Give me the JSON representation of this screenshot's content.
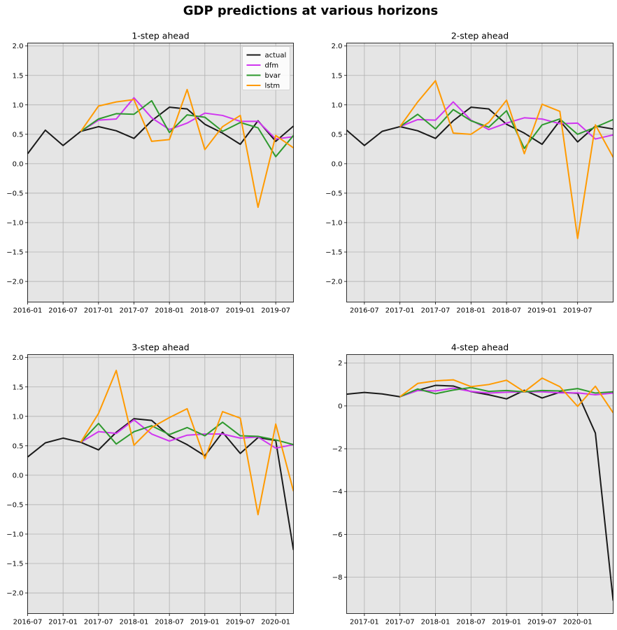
{
  "suptitle": "GDP predictions at various horizons",
  "colors": {
    "actual": "#1a1a1a",
    "dfm": "#d036f0",
    "bvar": "#2e992e",
    "lstm": "#ff9a00",
    "background": "#e5e5e5",
    "grid": "#b0b0b0"
  },
  "chart_data": [
    {
      "type": "line",
      "title": "1-step ahead",
      "xlabel": "",
      "ylabel": "",
      "xlim": [
        "2016-01",
        "2019-10"
      ],
      "ylim": [
        -2.35,
        2.05
      ],
      "yticks": [
        2.0,
        1.5,
        1.0,
        0.5,
        0.0,
        -0.5,
        -1.0,
        -1.5,
        -2.0
      ],
      "ytick_labels": [
        "2.0",
        "1.5",
        "1.0",
        "0.5",
        "0.0",
        "−0.5",
        "−1.0",
        "−1.5",
        "−2.0"
      ],
      "xticks": [
        "2016-01",
        "2016-07",
        "2017-01",
        "2017-07",
        "2018-01",
        "2018-07",
        "2019-01",
        "2019-07"
      ],
      "grid": true,
      "legend": "top-right",
      "series": [
        {
          "name": "actual",
          "x": [
            "2016-01",
            "2016-04",
            "2016-07",
            "2016-10",
            "2017-01",
            "2017-04",
            "2017-07",
            "2017-10",
            "2018-01",
            "2018-04",
            "2018-07",
            "2018-10",
            "2019-01",
            "2019-04",
            "2019-07",
            "2019-10"
          ],
          "values": [
            0.17,
            0.57,
            0.31,
            0.55,
            0.63,
            0.56,
            0.43,
            0.73,
            0.96,
            0.93,
            0.67,
            0.52,
            0.33,
            0.73,
            0.38,
            0.64
          ]
        },
        {
          "name": "dfm",
          "x": [
            "2016-10",
            "2017-01",
            "2017-04",
            "2017-07",
            "2017-10",
            "2018-01",
            "2018-04",
            "2018-07",
            "2018-10",
            "2019-01",
            "2019-04",
            "2019-07",
            "2019-10"
          ],
          "values": [
            0.55,
            0.74,
            0.76,
            1.12,
            0.78,
            0.58,
            0.69,
            0.86,
            0.82,
            0.72,
            0.72,
            0.42,
            0.46
          ]
        },
        {
          "name": "bvar",
          "x": [
            "2016-10",
            "2017-01",
            "2017-04",
            "2017-07",
            "2017-10",
            "2018-01",
            "2018-04",
            "2018-07",
            "2018-10",
            "2019-01",
            "2019-04",
            "2019-07",
            "2019-10"
          ],
          "values": [
            0.55,
            0.76,
            0.85,
            0.84,
            1.07,
            0.53,
            0.83,
            0.79,
            0.55,
            0.7,
            0.61,
            0.12,
            0.48
          ]
        },
        {
          "name": "lstm",
          "x": [
            "2016-10",
            "2017-01",
            "2017-04",
            "2017-07",
            "2017-10",
            "2018-01",
            "2018-04",
            "2018-07",
            "2018-10",
            "2019-01",
            "2019-04",
            "2019-07",
            "2019-10"
          ],
          "values": [
            0.55,
            0.98,
            1.05,
            1.09,
            0.38,
            0.41,
            1.26,
            0.24,
            0.63,
            0.82,
            -0.74,
            0.48,
            0.27
          ]
        }
      ]
    },
    {
      "type": "line",
      "title": "2-step ahead",
      "xlabel": "",
      "ylabel": "",
      "xlim": [
        "2016-04",
        "2020-01"
      ],
      "ylim": [
        -2.35,
        2.05
      ],
      "yticks": [
        2.0,
        1.5,
        1.0,
        0.5,
        0.0,
        -0.5,
        -1.0,
        -1.5,
        -2.0
      ],
      "ytick_labels": [
        "2.0",
        "1.5",
        "1.0",
        "0.5",
        "0.0",
        "−0.5",
        "−1.0",
        "−1.5",
        "−2.0"
      ],
      "xticks": [
        "2016-07",
        "2017-01",
        "2017-07",
        "2018-01",
        "2018-07",
        "2019-01",
        "2019-07"
      ],
      "grid": true,
      "series": [
        {
          "name": "actual",
          "x": [
            "2016-04",
            "2016-07",
            "2016-10",
            "2017-01",
            "2017-04",
            "2017-07",
            "2017-10",
            "2018-01",
            "2018-04",
            "2018-07",
            "2018-10",
            "2019-01",
            "2019-04",
            "2019-07",
            "2019-10",
            "2020-01"
          ],
          "values": [
            0.57,
            0.31,
            0.55,
            0.63,
            0.56,
            0.43,
            0.73,
            0.96,
            0.93,
            0.67,
            0.52,
            0.33,
            0.73,
            0.37,
            0.64,
            0.59
          ]
        },
        {
          "name": "dfm",
          "x": [
            "2017-01",
            "2017-04",
            "2017-07",
            "2017-10",
            "2018-01",
            "2018-04",
            "2018-07",
            "2018-10",
            "2019-01",
            "2019-04",
            "2019-07",
            "2019-10",
            "2020-01"
          ],
          "values": [
            0.63,
            0.75,
            0.74,
            1.05,
            0.74,
            0.58,
            0.69,
            0.78,
            0.76,
            0.68,
            0.69,
            0.42,
            0.49
          ]
        },
        {
          "name": "bvar",
          "x": [
            "2017-01",
            "2017-04",
            "2017-07",
            "2017-10",
            "2018-01",
            "2018-04",
            "2018-07",
            "2018-10",
            "2019-01",
            "2019-04",
            "2019-07",
            "2019-10",
            "2020-01"
          ],
          "values": [
            0.63,
            0.84,
            0.59,
            0.92,
            0.73,
            0.62,
            0.9,
            0.26,
            0.66,
            0.76,
            0.5,
            0.62,
            0.75
          ]
        },
        {
          "name": "lstm",
          "x": [
            "2017-01",
            "2017-04",
            "2017-07",
            "2017-10",
            "2018-01",
            "2018-04",
            "2018-07",
            "2018-10",
            "2019-01",
            "2019-04",
            "2019-07",
            "2019-10",
            "2020-01"
          ],
          "values": [
            0.63,
            1.05,
            1.41,
            0.52,
            0.5,
            0.7,
            1.08,
            0.17,
            1.01,
            0.89,
            -1.27,
            0.66,
            0.11
          ]
        }
      ]
    },
    {
      "type": "line",
      "title": "3-step ahead",
      "xlabel": "",
      "ylabel": "",
      "xlim": [
        "2016-07",
        "2020-04"
      ],
      "ylim": [
        -2.35,
        2.05
      ],
      "yticks": [
        2.0,
        1.5,
        1.0,
        0.5,
        0.0,
        -0.5,
        -1.0,
        -1.5,
        -2.0
      ],
      "ytick_labels": [
        "2.0",
        "1.5",
        "1.0",
        "0.5",
        "0.0",
        "−0.5",
        "−1.0",
        "−1.5",
        "−2.0"
      ],
      "xticks": [
        "2016-07",
        "2017-01",
        "2017-07",
        "2018-01",
        "2018-07",
        "2019-01",
        "2019-07",
        "2020-01"
      ],
      "grid": true,
      "series": [
        {
          "name": "actual",
          "x": [
            "2016-07",
            "2016-10",
            "2017-01",
            "2017-04",
            "2017-07",
            "2017-10",
            "2018-01",
            "2018-04",
            "2018-07",
            "2018-10",
            "2019-01",
            "2019-04",
            "2019-07",
            "2019-10",
            "2020-01",
            "2020-04"
          ],
          "values": [
            0.31,
            0.55,
            0.63,
            0.56,
            0.43,
            0.73,
            0.96,
            0.93,
            0.67,
            0.52,
            0.33,
            0.73,
            0.37,
            0.64,
            0.59,
            -1.27
          ]
        },
        {
          "name": "dfm",
          "x": [
            "2017-04",
            "2017-07",
            "2017-10",
            "2018-01",
            "2018-04",
            "2018-07",
            "2018-10",
            "2019-01",
            "2019-04",
            "2019-07",
            "2019-10",
            "2020-01",
            "2020-04"
          ],
          "values": [
            0.56,
            0.74,
            0.71,
            0.94,
            0.7,
            0.58,
            0.68,
            0.7,
            0.7,
            0.63,
            0.65,
            0.46,
            0.52
          ]
        },
        {
          "name": "bvar",
          "x": [
            "2017-04",
            "2017-07",
            "2017-10",
            "2018-01",
            "2018-04",
            "2018-07",
            "2018-10",
            "2019-01",
            "2019-04",
            "2019-07",
            "2019-10",
            "2020-01",
            "2020-04"
          ],
          "values": [
            0.56,
            0.88,
            0.53,
            0.74,
            0.84,
            0.69,
            0.81,
            0.67,
            0.9,
            0.67,
            0.66,
            0.6,
            0.52
          ]
        },
        {
          "name": "lstm",
          "x": [
            "2017-04",
            "2017-07",
            "2017-10",
            "2018-01",
            "2018-04",
            "2018-07",
            "2018-10",
            "2019-01",
            "2019-04",
            "2019-07",
            "2019-10",
            "2020-01",
            "2020-04"
          ],
          "values": [
            0.56,
            1.05,
            1.78,
            0.51,
            0.81,
            0.98,
            1.13,
            0.28,
            1.08,
            0.97,
            -0.67,
            0.87,
            -0.27
          ]
        }
      ]
    },
    {
      "type": "line",
      "title": "4-step ahead",
      "xlabel": "",
      "ylabel": "",
      "xlim": [
        "2016-10",
        "2020-07"
      ],
      "ylim": [
        -9.7,
        2.4
      ],
      "yticks": [
        2,
        0,
        -2,
        -4,
        -6,
        -8
      ],
      "ytick_labels": [
        "2",
        "0",
        "−2",
        "−4",
        "−6",
        "−8"
      ],
      "xticks": [
        "2017-01",
        "2017-07",
        "2018-01",
        "2018-07",
        "2019-01",
        "2019-07",
        "2020-01"
      ],
      "grid": true,
      "series": [
        {
          "name": "actual",
          "x": [
            "2016-10",
            "2017-01",
            "2017-04",
            "2017-07",
            "2017-10",
            "2018-01",
            "2018-04",
            "2018-07",
            "2018-10",
            "2019-01",
            "2019-04",
            "2019-07",
            "2019-10",
            "2020-01",
            "2020-04",
            "2020-07"
          ],
          "values": [
            0.55,
            0.63,
            0.56,
            0.43,
            0.73,
            0.96,
            0.93,
            0.67,
            0.52,
            0.33,
            0.73,
            0.37,
            0.64,
            0.59,
            -1.27,
            -9.1
          ]
        },
        {
          "name": "dfm",
          "x": [
            "2017-07",
            "2017-10",
            "2018-01",
            "2018-04",
            "2018-07",
            "2018-10",
            "2019-01",
            "2019-04",
            "2019-07",
            "2019-10",
            "2020-01",
            "2020-04",
            "2020-07"
          ],
          "values": [
            0.43,
            0.72,
            0.7,
            0.83,
            0.68,
            0.6,
            0.64,
            0.66,
            0.66,
            0.61,
            0.61,
            0.52,
            0.6
          ]
        },
        {
          "name": "bvar",
          "x": [
            "2017-07",
            "2017-10",
            "2018-01",
            "2018-04",
            "2018-07",
            "2018-10",
            "2019-01",
            "2019-04",
            "2019-07",
            "2019-10",
            "2020-01",
            "2020-04",
            "2020-07"
          ],
          "values": [
            0.43,
            0.79,
            0.57,
            0.74,
            0.86,
            0.68,
            0.72,
            0.66,
            0.72,
            0.7,
            0.81,
            0.6,
            0.66
          ]
        },
        {
          "name": "lstm",
          "x": [
            "2017-07",
            "2017-10",
            "2018-01",
            "2018-04",
            "2018-07",
            "2018-10",
            "2019-01",
            "2019-04",
            "2019-07",
            "2019-10",
            "2020-01",
            "2020-04",
            "2020-07"
          ],
          "values": [
            0.43,
            1.05,
            1.17,
            1.22,
            0.9,
            1.0,
            1.2,
            0.66,
            1.3,
            0.9,
            -0.02,
            0.92,
            -0.32
          ]
        }
      ]
    }
  ]
}
